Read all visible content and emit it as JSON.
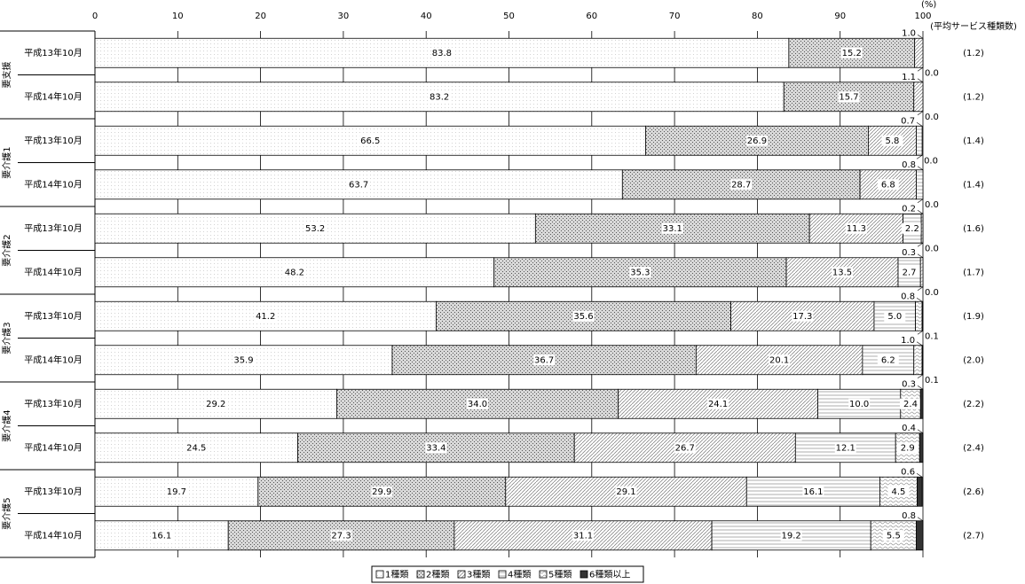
{
  "chart_data": {
    "type": "stacked-bar-horizontal",
    "unit_label": "(%)",
    "right_header": "(平均サービス種類数)",
    "groups": [
      "要支援",
      "要介護1",
      "要介護2",
      "要介護3",
      "要介護4",
      "要介護5"
    ],
    "categories": [
      "平成13年10月",
      "平成14年10月",
      "平成13年10月",
      "平成14年10月",
      "平成13年10月",
      "平成14年10月",
      "平成13年10月",
      "平成14年10月",
      "平成13年10月",
      "平成14年10月",
      "平成13年10月",
      "平成14年10月"
    ],
    "averages": [
      "(1.2)",
      "(1.2)",
      "(1.4)",
      "(1.4)",
      "(1.6)",
      "(1.7)",
      "(1.9)",
      "(2.0)",
      "(2.2)",
      "(2.4)",
      "(2.6)",
      "(2.7)"
    ],
    "xlim": [
      0,
      100
    ],
    "xticks": [
      0,
      10,
      20,
      30,
      40,
      50,
      60,
      70,
      80,
      90,
      100
    ],
    "grid": true,
    "legend": "bottom",
    "series": [
      {
        "name": "1種類",
        "color": "#bbbbbb",
        "values": [
          83.8,
          83.2,
          66.5,
          63.7,
          53.2,
          48.2,
          41.2,
          35.9,
          29.2,
          24.5,
          19.7,
          16.1
        ],
        "value_labels": [
          "83.8",
          "83.2",
          "66.5",
          "63.7",
          "53.2",
          "48.2",
          "41.2",
          "35.9",
          "29.2",
          "24.5",
          "19.7",
          "16.1"
        ]
      },
      {
        "name": "2種類",
        "color": "#555555",
        "values": [
          15.2,
          15.7,
          26.9,
          28.7,
          33.1,
          35.3,
          35.6,
          36.7,
          34.0,
          33.4,
          29.9,
          27.3
        ],
        "value_labels": [
          "15.2",
          "15.7",
          "26.9",
          "28.7",
          "33.1",
          "35.3",
          "35.6",
          "36.7",
          "34.0",
          "33.4",
          "29.9",
          "27.3"
        ]
      },
      {
        "name": "3種類",
        "color": "#777777",
        "values": [
          1.0,
          1.1,
          5.8,
          6.8,
          11.3,
          13.5,
          17.3,
          20.1,
          24.1,
          26.7,
          29.1,
          31.1
        ],
        "value_labels": [
          "1.0",
          "1.1",
          "5.8",
          "6.8",
          "11.3",
          "13.5",
          "17.3",
          "20.1",
          "24.1",
          "26.7",
          "29.1",
          "31.1"
        ]
      },
      {
        "name": "4種類",
        "color": "#888888",
        "values": [
          0.0,
          0.0,
          0.7,
          0.8,
          2.2,
          2.7,
          5.0,
          6.2,
          10.0,
          12.1,
          16.1,
          19.2
        ],
        "value_labels": [
          "0.0",
          "0.0",
          "0.7",
          "0.8",
          "2.2",
          "2.7",
          "5.0",
          "6.2",
          "10.0",
          "12.1",
          "16.1",
          "19.2"
        ]
      },
      {
        "name": "5種類",
        "color": "#999999",
        "values": [
          null,
          null,
          0.0,
          0.0,
          0.2,
          0.3,
          0.8,
          1.0,
          2.4,
          2.9,
          4.5,
          5.5
        ],
        "value_labels": [
          null,
          null,
          "0.0",
          "0.0",
          "0.2",
          "0.3",
          "0.8",
          "1.0",
          "2.4",
          "2.9",
          "4.5",
          "5.5"
        ]
      },
      {
        "name": "6種類以上",
        "color": "#333333",
        "values": [
          null,
          null,
          null,
          null,
          0.0,
          0.0,
          0.1,
          0.1,
          0.3,
          0.4,
          0.6,
          0.8
        ],
        "value_labels": [
          null,
          null,
          null,
          null,
          "0.0",
          "0.0",
          "0.1",
          "0.1",
          "0.3",
          "0.4",
          "0.6",
          "0.8"
        ]
      }
    ]
  }
}
